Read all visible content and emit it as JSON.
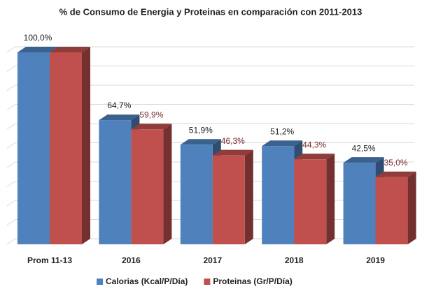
{
  "chart_data": {
    "type": "bar3d",
    "title": "% de Consumo de Energia y Proteinas en comparación con 2011-2013",
    "categories": [
      "Prom 11-13",
      "2016",
      "2017",
      "2018",
      "2019"
    ],
    "series": [
      {
        "name": "Calorias (Kcal/P/Día)",
        "color": "#4f81bd",
        "label_color": "#222222",
        "values": [
          100,
          64.7,
          51.9,
          51.2,
          42.5
        ],
        "value_labels": [
          "100,0%",
          "64,7%",
          "51,9%",
          "51,2%",
          "42,5%"
        ]
      },
      {
        "name": "Proteinas (Gr/P/Día)",
        "color": "#c0504d",
        "label_color": "#7b2b2b",
        "values": [
          100,
          59.9,
          46.3,
          44.3,
          35.0
        ],
        "value_labels": [
          null,
          "59,9%",
          "46,3%",
          "44,3%",
          "35,0%"
        ]
      }
    ],
    "ylim": [
      0,
      100
    ],
    "yticks": [
      0,
      10,
      20,
      30,
      40,
      50,
      60,
      70,
      80,
      90,
      100
    ],
    "grid": true,
    "legend": "bottom"
  }
}
